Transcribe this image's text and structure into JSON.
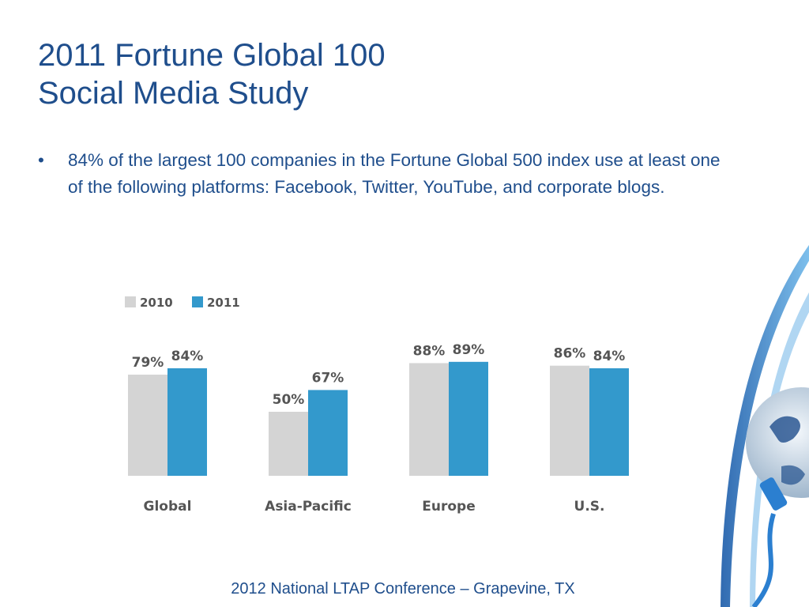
{
  "title_line1": "2011 Fortune Global 100",
  "title_line2": "Social Media Study",
  "bullets": [
    {
      "text": "84% of the largest 100 companies in the Fortune Global 500 index use at least one of the following platforms: Facebook, Twitter, YouTube, and corporate blogs."
    }
  ],
  "bullet_glyph": "•",
  "footer": "2012 National LTAP Conference – Grapevine, TX",
  "colors": {
    "title": "#1f4e8c",
    "series2010": "#d4d4d4",
    "series2011": "#3399cc"
  },
  "chart_data": {
    "type": "bar",
    "categories": [
      "Global",
      "Asia-Pacific",
      "Europe",
      "U.S."
    ],
    "series": [
      {
        "name": "2010",
        "values": [
          79,
          50,
          88,
          86
        ],
        "labels": [
          "79%",
          "50%",
          "88%",
          "86%"
        ],
        "color": "#d4d4d4"
      },
      {
        "name": "2011",
        "values": [
          84,
          67,
          89,
          84
        ],
        "labels": [
          "84%",
          "67%",
          "89%",
          "84%"
        ],
        "color": "#3399cc"
      }
    ],
    "ylim": [
      0,
      100
    ],
    "legend": "top-left",
    "grid": false
  }
}
